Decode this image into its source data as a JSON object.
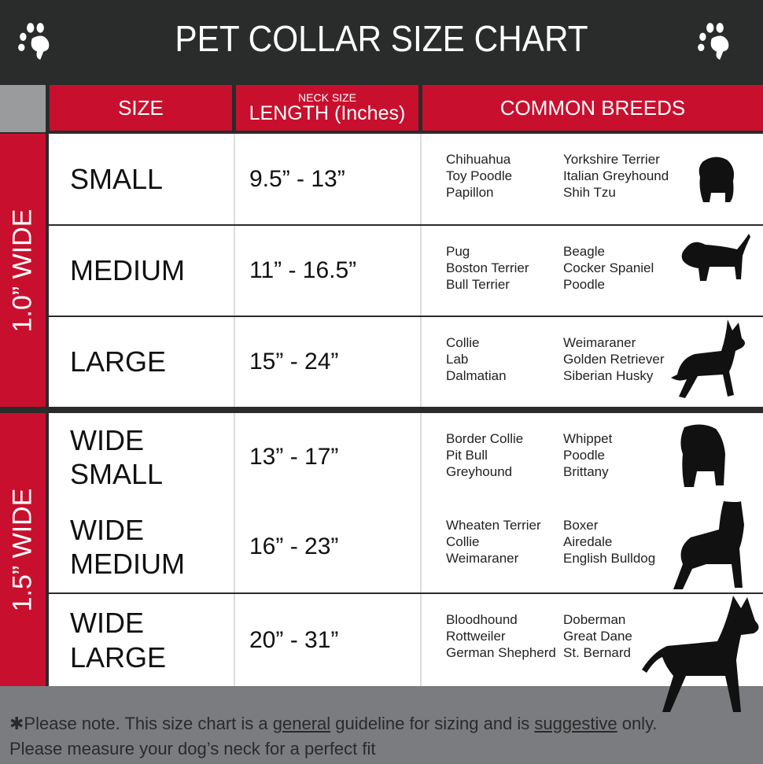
{
  "title": "PET COLLAR SIZE CHART",
  "headers": {
    "size": "SIZE",
    "neck_size": "NECK SIZE",
    "length": "LENGTH (Inches)",
    "breeds": "COMMON BREEDS"
  },
  "groups": [
    {
      "label": "1.0” WIDE"
    },
    {
      "label": "1.5” WIDE"
    }
  ],
  "rows": [
    {
      "size": "SMALL",
      "length": "9.5” - 13”",
      "breeds_a": [
        "Chihuahua",
        "Toy Poodle",
        "Papillon"
      ],
      "breeds_b": [
        "Yorkshire Terrier",
        "Italian Greyhound",
        "Shih Tzu"
      ]
    },
    {
      "size": "MEDIUM",
      "length": "11” - 16.5”",
      "breeds_a": [
        "Pug",
        "Boston Terrier",
        "Bull Terrier"
      ],
      "breeds_b": [
        "Beagle",
        "Cocker Spaniel",
        "Poodle"
      ]
    },
    {
      "size": "LARGE",
      "length": "15” - 24”",
      "breeds_a": [
        "Collie",
        "Lab",
        "Dalmatian"
      ],
      "breeds_b": [
        "Weimaraner",
        "Golden Retriever",
        "Siberian Husky"
      ]
    },
    {
      "size": "WIDE SMALL",
      "length": "13” - 17”",
      "breeds_a": [
        "Border Collie",
        "Pit Bull",
        "Greyhound"
      ],
      "breeds_b": [
        "Whippet",
        "Poodle",
        "Brittany"
      ]
    },
    {
      "size": "WIDE MEDIUM",
      "length": "16” - 23”",
      "breeds_a": [
        "Wheaten Terrier",
        "Collie",
        "Weimaraner"
      ],
      "breeds_b": [
        "Boxer",
        "Airedale",
        "English Bulldog"
      ]
    },
    {
      "size": "WIDE LARGE",
      "length": "20” - 31”",
      "breeds_a": [
        "Bloodhound",
        "Rottweiler",
        "German Shepherd"
      ],
      "breeds_b": [
        "Doberman",
        "Great Dane",
        "St. Bernard"
      ]
    }
  ],
  "footer": {
    "p1": "✱Please note. This size chart is a ",
    "u1": "general",
    "p2": " guideline for sizing and is ",
    "u2": "suggestive",
    "p3": " only.",
    "line2": "Please measure your dog’s neck for a perfect fit"
  },
  "colors": {
    "red": "#c8102e",
    "dark": "#2a2b2b",
    "gray": "#7b7c80"
  }
}
